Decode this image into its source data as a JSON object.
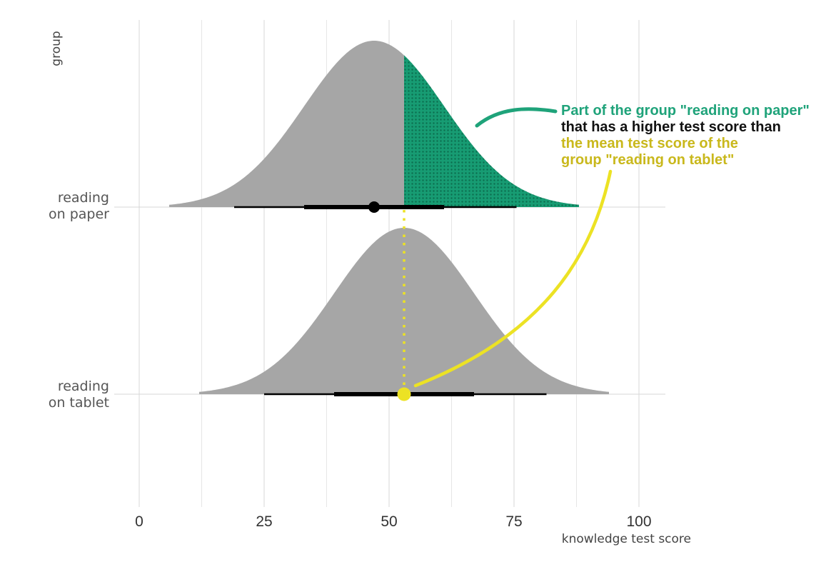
{
  "chart_data": {
    "type": "area",
    "xlabel": "knowledge test score",
    "ylabel": "group",
    "xlim": [
      -5,
      105
    ],
    "x_ticks": [
      0,
      25,
      50,
      75,
      100
    ],
    "x_tick_labels": [
      "0",
      "25",
      "50",
      "75",
      "100"
    ],
    "grid": true,
    "series": [
      {
        "label_lines": [
          "reading",
          "on paper"
        ],
        "mean": 47,
        "sd": 14,
        "density_range": [
          6,
          88
        ],
        "interval_inner": [
          33,
          61
        ],
        "interval_outer": [
          19,
          75.5
        ],
        "point": 47,
        "shaded_above": 53,
        "fill": "#a6a6a6",
        "shade_fill": "#179c73"
      },
      {
        "label_lines": [
          "reading",
          "on tablet"
        ],
        "mean": 53,
        "sd": 14,
        "density_range": [
          12,
          94
        ],
        "interval_inner": [
          39,
          67
        ],
        "interval_outer": [
          25,
          81.5
        ],
        "point": 53,
        "fill": "#a6a6a6"
      }
    ],
    "annotation": {
      "line1": "Part of the group \"reading on paper\"",
      "line2": "that has a higher test score than",
      "line3": "the mean test score of the",
      "line4": "group \"reading on tablet\"",
      "color_green": "#1fa37a",
      "color_black": "#111111",
      "color_yellow": "#c9b81c",
      "marker_color": "#ece224"
    }
  }
}
